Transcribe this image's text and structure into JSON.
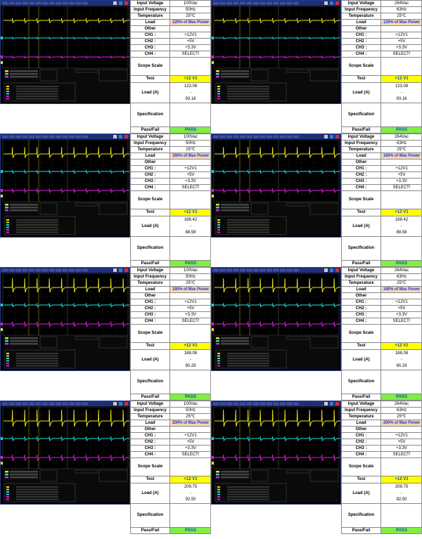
{
  "labels": {
    "input_voltage": "Input Voltage",
    "input_frequency": "Input Frequency",
    "temperature": "Temperature",
    "load": "Load",
    "other": "Other",
    "ch1": "CH1 :",
    "ch2": "CH2 :",
    "ch3": "CH3 :",
    "ch4": "CH4 :",
    "scope_scale": "Scope Scale",
    "test": "Test",
    "load_a": "Load (A)",
    "specification": "Specification",
    "pass_fail": "Pass/Fail"
  },
  "colors": {
    "load_bg": "#f9d9b8",
    "accent_text": "#1f3fd0",
    "test_bg": "#ffff00",
    "pass_bg": "#80ee44",
    "ch1_trace": "#e8e020",
    "ch2_trace": "#20d8e0",
    "ch3_trace": "#e020e0"
  },
  "panels": [
    {
      "voltage": "100Vac",
      "frequency": "50Hz",
      "temperature": "25℃",
      "load": "120% of Max Power",
      "ch1": "+12V1",
      "ch2": "+5V",
      "ch3": "+3.3V",
      "ch4": "SELECT!",
      "test": "+12 V1",
      "load_max": "123.08",
      "load_sep": "-",
      "load_min": "93.16",
      "result": "PASS"
    },
    {
      "voltage": "264Vac",
      "frequency": "63Hz",
      "temperature": "25℃",
      "load": "120% of Max Power",
      "ch1": "+12V1",
      "ch2": "+5V",
      "ch3": "+3.3V",
      "ch4": "SELECT!",
      "test": "+12 V1",
      "load_max": "123.08",
      "load_sep": "-",
      "load_min": "93.16",
      "result": "PASS"
    },
    {
      "voltage": "100Vac",
      "frequency": "50Hz",
      "temperature": "25℃",
      "load": "160% of Max Power",
      "ch1": "+12V1",
      "ch2": "+5V",
      "ch3": "+3.3V",
      "ch4": "SELECT!",
      "test": "+12 V1",
      "load_max": "166.42",
      "load_sep": "-",
      "load_min": "88.58",
      "result": "PASS"
    },
    {
      "voltage": "264Vac",
      "frequency": "63Hz",
      "temperature": "25℃",
      "load": "160% of Max Power",
      "ch1": "+12V1",
      "ch2": "+5V",
      "ch3": "+3.3V",
      "ch4": "SELECT!",
      "test": "+12 V1",
      "load_max": "166.42",
      "load_sep": "-",
      "load_min": "88.58",
      "result": "PASS"
    },
    {
      "voltage": "100Vac",
      "frequency": "50Hz",
      "temperature": "25℃",
      "load": "180% of Max Power",
      "ch1": "+12V1",
      "ch2": "+5V",
      "ch3": "+3.3V",
      "ch4": "SELECT!",
      "test": "+12 V1",
      "load_max": "188.08",
      "load_sep": "-",
      "load_min": "90.29",
      "result": "PASS"
    },
    {
      "voltage": "264Vac",
      "frequency": "63Hz",
      "temperature": "25℃",
      "load": "180% of Max Power",
      "ch1": "+12V1",
      "ch2": "+5V",
      "ch3": "+3.3V",
      "ch4": "SELECT!",
      "test": "+12 V1",
      "load_max": "188.08",
      "load_sep": "-",
      "load_min": "90.29",
      "result": "PASS"
    },
    {
      "voltage": "100Vac",
      "frequency": "50Hz",
      "temperature": "25℃",
      "load": "200% of Max Power",
      "ch1": "+12V1",
      "ch2": "+5V",
      "ch3": "+3.3V",
      "ch4": "SELECT!",
      "test": "+12 V1",
      "load_max": "209.75",
      "load_sep": "-",
      "load_min": "92.50",
      "result": "PASS"
    },
    {
      "voltage": "264Vac",
      "frequency": "63Hz",
      "temperature": "25℃",
      "load": "200% of Max Power",
      "ch1": "+12V1",
      "ch2": "+5V",
      "ch3": "+3.3V",
      "ch4": "SELECT!",
      "test": "+12 V1",
      "load_max": "209.75",
      "load_sep": "-",
      "load_min": "92.50",
      "result": "PASS"
    }
  ]
}
